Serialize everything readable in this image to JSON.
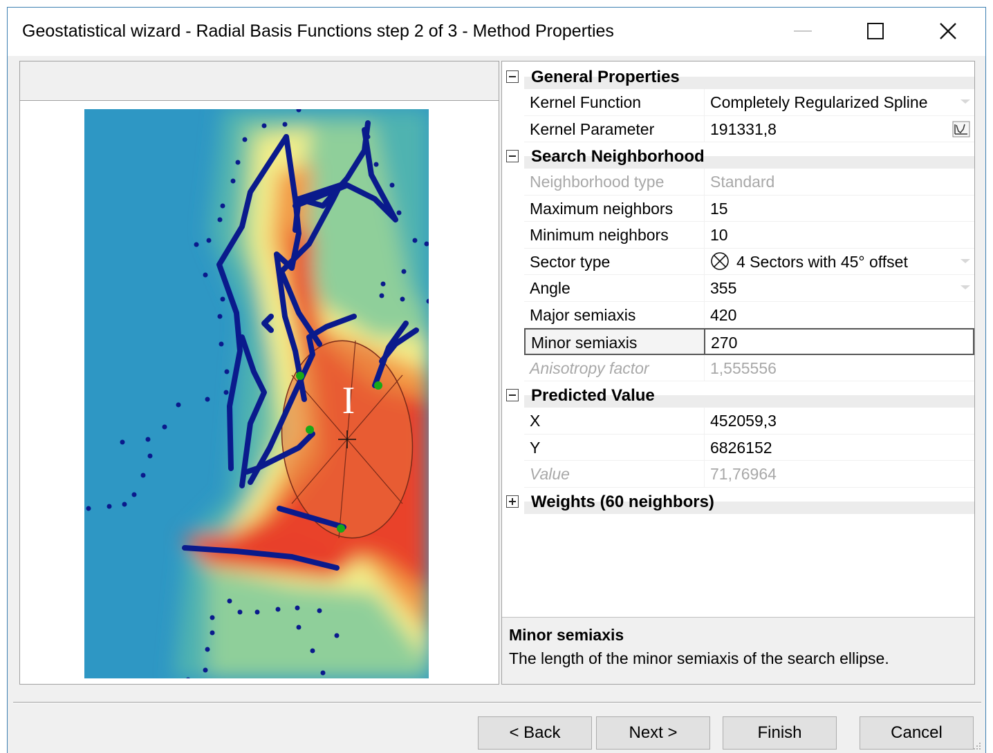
{
  "window": {
    "title": "Geostatistical wizard - Radial Basis Functions step 2 of 3 - Method Properties"
  },
  "map": {
    "cursor_glyph": "I",
    "colors": {
      "low": "#2e9bc6",
      "mid": "#f5f08a",
      "high": "#e8452a",
      "lines": "#0a1a8c",
      "neighbor_points": "#17a817",
      "ellipse": "#7a2a18"
    }
  },
  "properties": {
    "general": {
      "label": "General Properties",
      "kernel_function": {
        "name": "Kernel Function",
        "value": "Completely Regularized Spline"
      },
      "kernel_parameter": {
        "name": "Kernel Parameter",
        "value": "191331,8"
      }
    },
    "search": {
      "label": "Search Neighborhood",
      "neighborhood_type": {
        "name": "Neighborhood type",
        "value": "Standard"
      },
      "max_neighbors": {
        "name": "Maximum neighbors",
        "value": "15"
      },
      "min_neighbors": {
        "name": "Minimum neighbors",
        "value": "10"
      },
      "sector_type": {
        "name": "Sector type",
        "value": "4 Sectors with 45° offset"
      },
      "angle": {
        "name": "Angle",
        "value": "355"
      },
      "major_semiaxis": {
        "name": "Major semiaxis",
        "value": "420"
      },
      "minor_semiaxis": {
        "name": "Minor semiaxis",
        "value": "270"
      },
      "anisotropy_factor": {
        "name": "Anisotropy factor",
        "value": "1,555556"
      }
    },
    "predicted": {
      "label": "Predicted Value",
      "x": {
        "name": "X",
        "value": "452059,3"
      },
      "y": {
        "name": "Y",
        "value": "6826152"
      },
      "value": {
        "name": "Value",
        "value": "71,76964"
      }
    },
    "weights": {
      "label": "Weights (60 neighbors)"
    }
  },
  "description": {
    "title": "Minor semiaxis",
    "text": "The length of the minor semiaxis of the search ellipse."
  },
  "buttons": {
    "back": "< Back",
    "next": "Next >",
    "finish": "Finish",
    "cancel": "Cancel"
  }
}
